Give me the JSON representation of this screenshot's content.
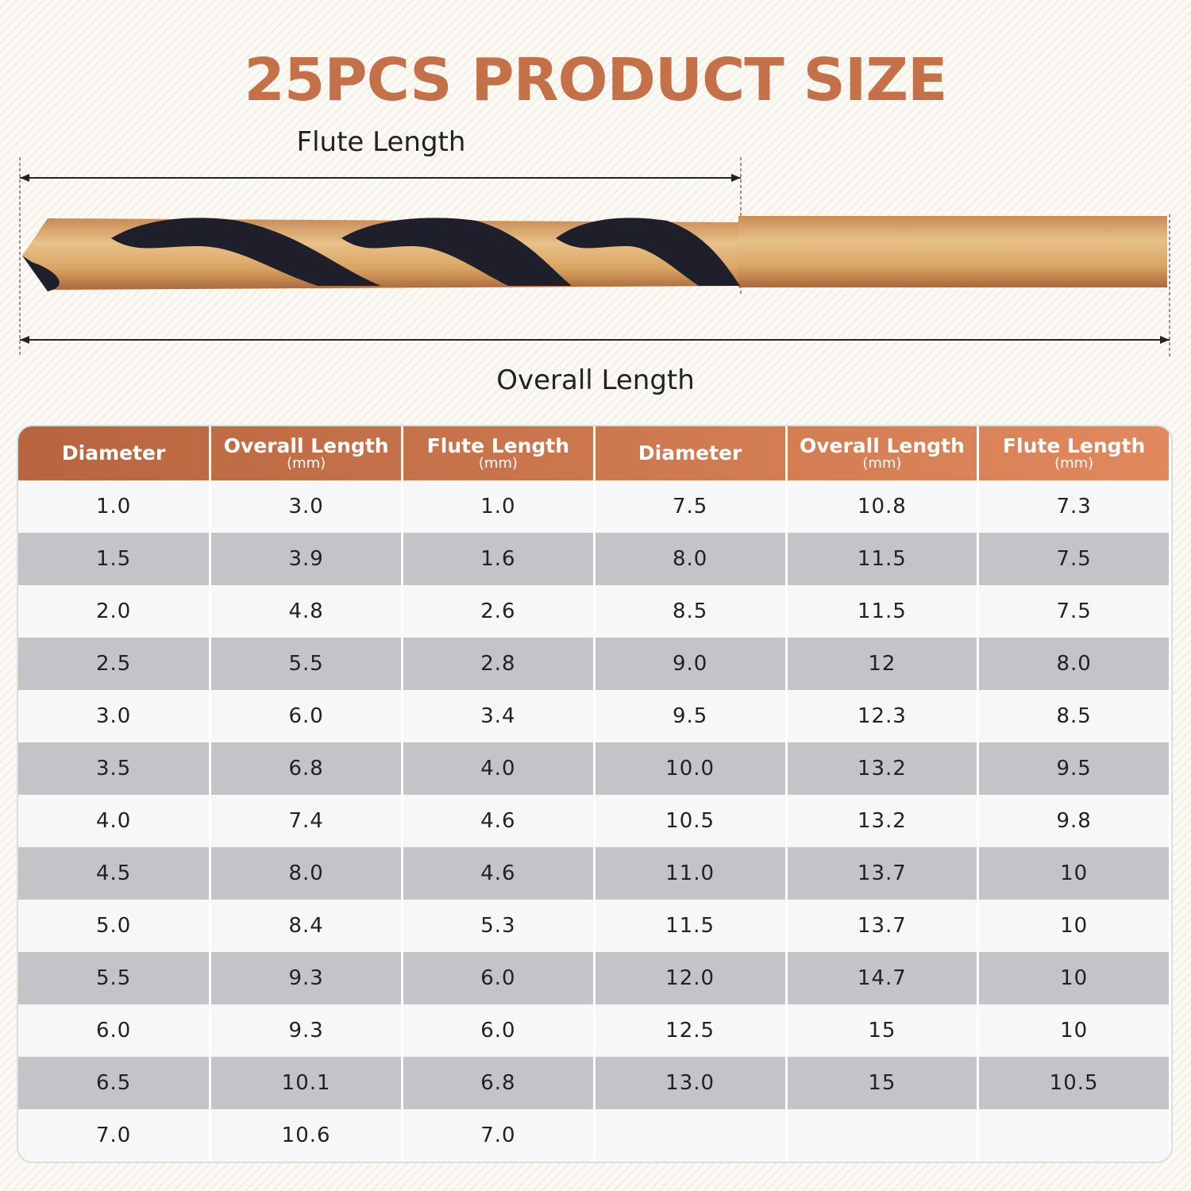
{
  "title": "25PCS PRODUCT SIZE",
  "diagram": {
    "flute_label": "Flute Length",
    "overall_label": "Overall Length"
  },
  "table": {
    "headers": [
      {
        "label": "Diameter"
      },
      {
        "label": "Overall Length",
        "unit": "(mm)"
      },
      {
        "label": "Flute Length",
        "unit": "(mm)"
      },
      {
        "label": "Diameter"
      },
      {
        "label": "Overall Length",
        "unit": "(mm)"
      },
      {
        "label": "Flute Length",
        "unit": "(mm)"
      }
    ],
    "rows": [
      [
        "1.0",
        "3.0",
        "1.0",
        "7.5",
        "10.8",
        "7.3"
      ],
      [
        "1.5",
        "3.9",
        "1.6",
        "8.0",
        "11.5",
        "7.5"
      ],
      [
        "2.0",
        "4.8",
        "2.6",
        "8.5",
        "11.5",
        "7.5"
      ],
      [
        "2.5",
        "5.5",
        "2.8",
        "9.0",
        "12",
        "8.0"
      ],
      [
        "3.0",
        "6.0",
        "3.4",
        "9.5",
        "12.3",
        "8.5"
      ],
      [
        "3.5",
        "6.8",
        "4.0",
        "10.0",
        "13.2",
        "9.5"
      ],
      [
        "4.0",
        "7.4",
        "4.6",
        "10.5",
        "13.2",
        "9.8"
      ],
      [
        "4.5",
        "8.0",
        "4.6",
        "11.0",
        "13.7",
        "10"
      ],
      [
        "5.0",
        "8.4",
        "5.3",
        "11.5",
        "13.7",
        "10"
      ],
      [
        "5.5",
        "9.3",
        "6.0",
        "12.0",
        "14.7",
        "10"
      ],
      [
        "6.0",
        "9.3",
        "6.0",
        "12.5",
        "15",
        "10"
      ],
      [
        "6.5",
        "10.1",
        "6.8",
        "13.0",
        "15",
        "10.5"
      ],
      [
        "7.0",
        "10.6",
        "7.0"
      ]
    ]
  }
}
